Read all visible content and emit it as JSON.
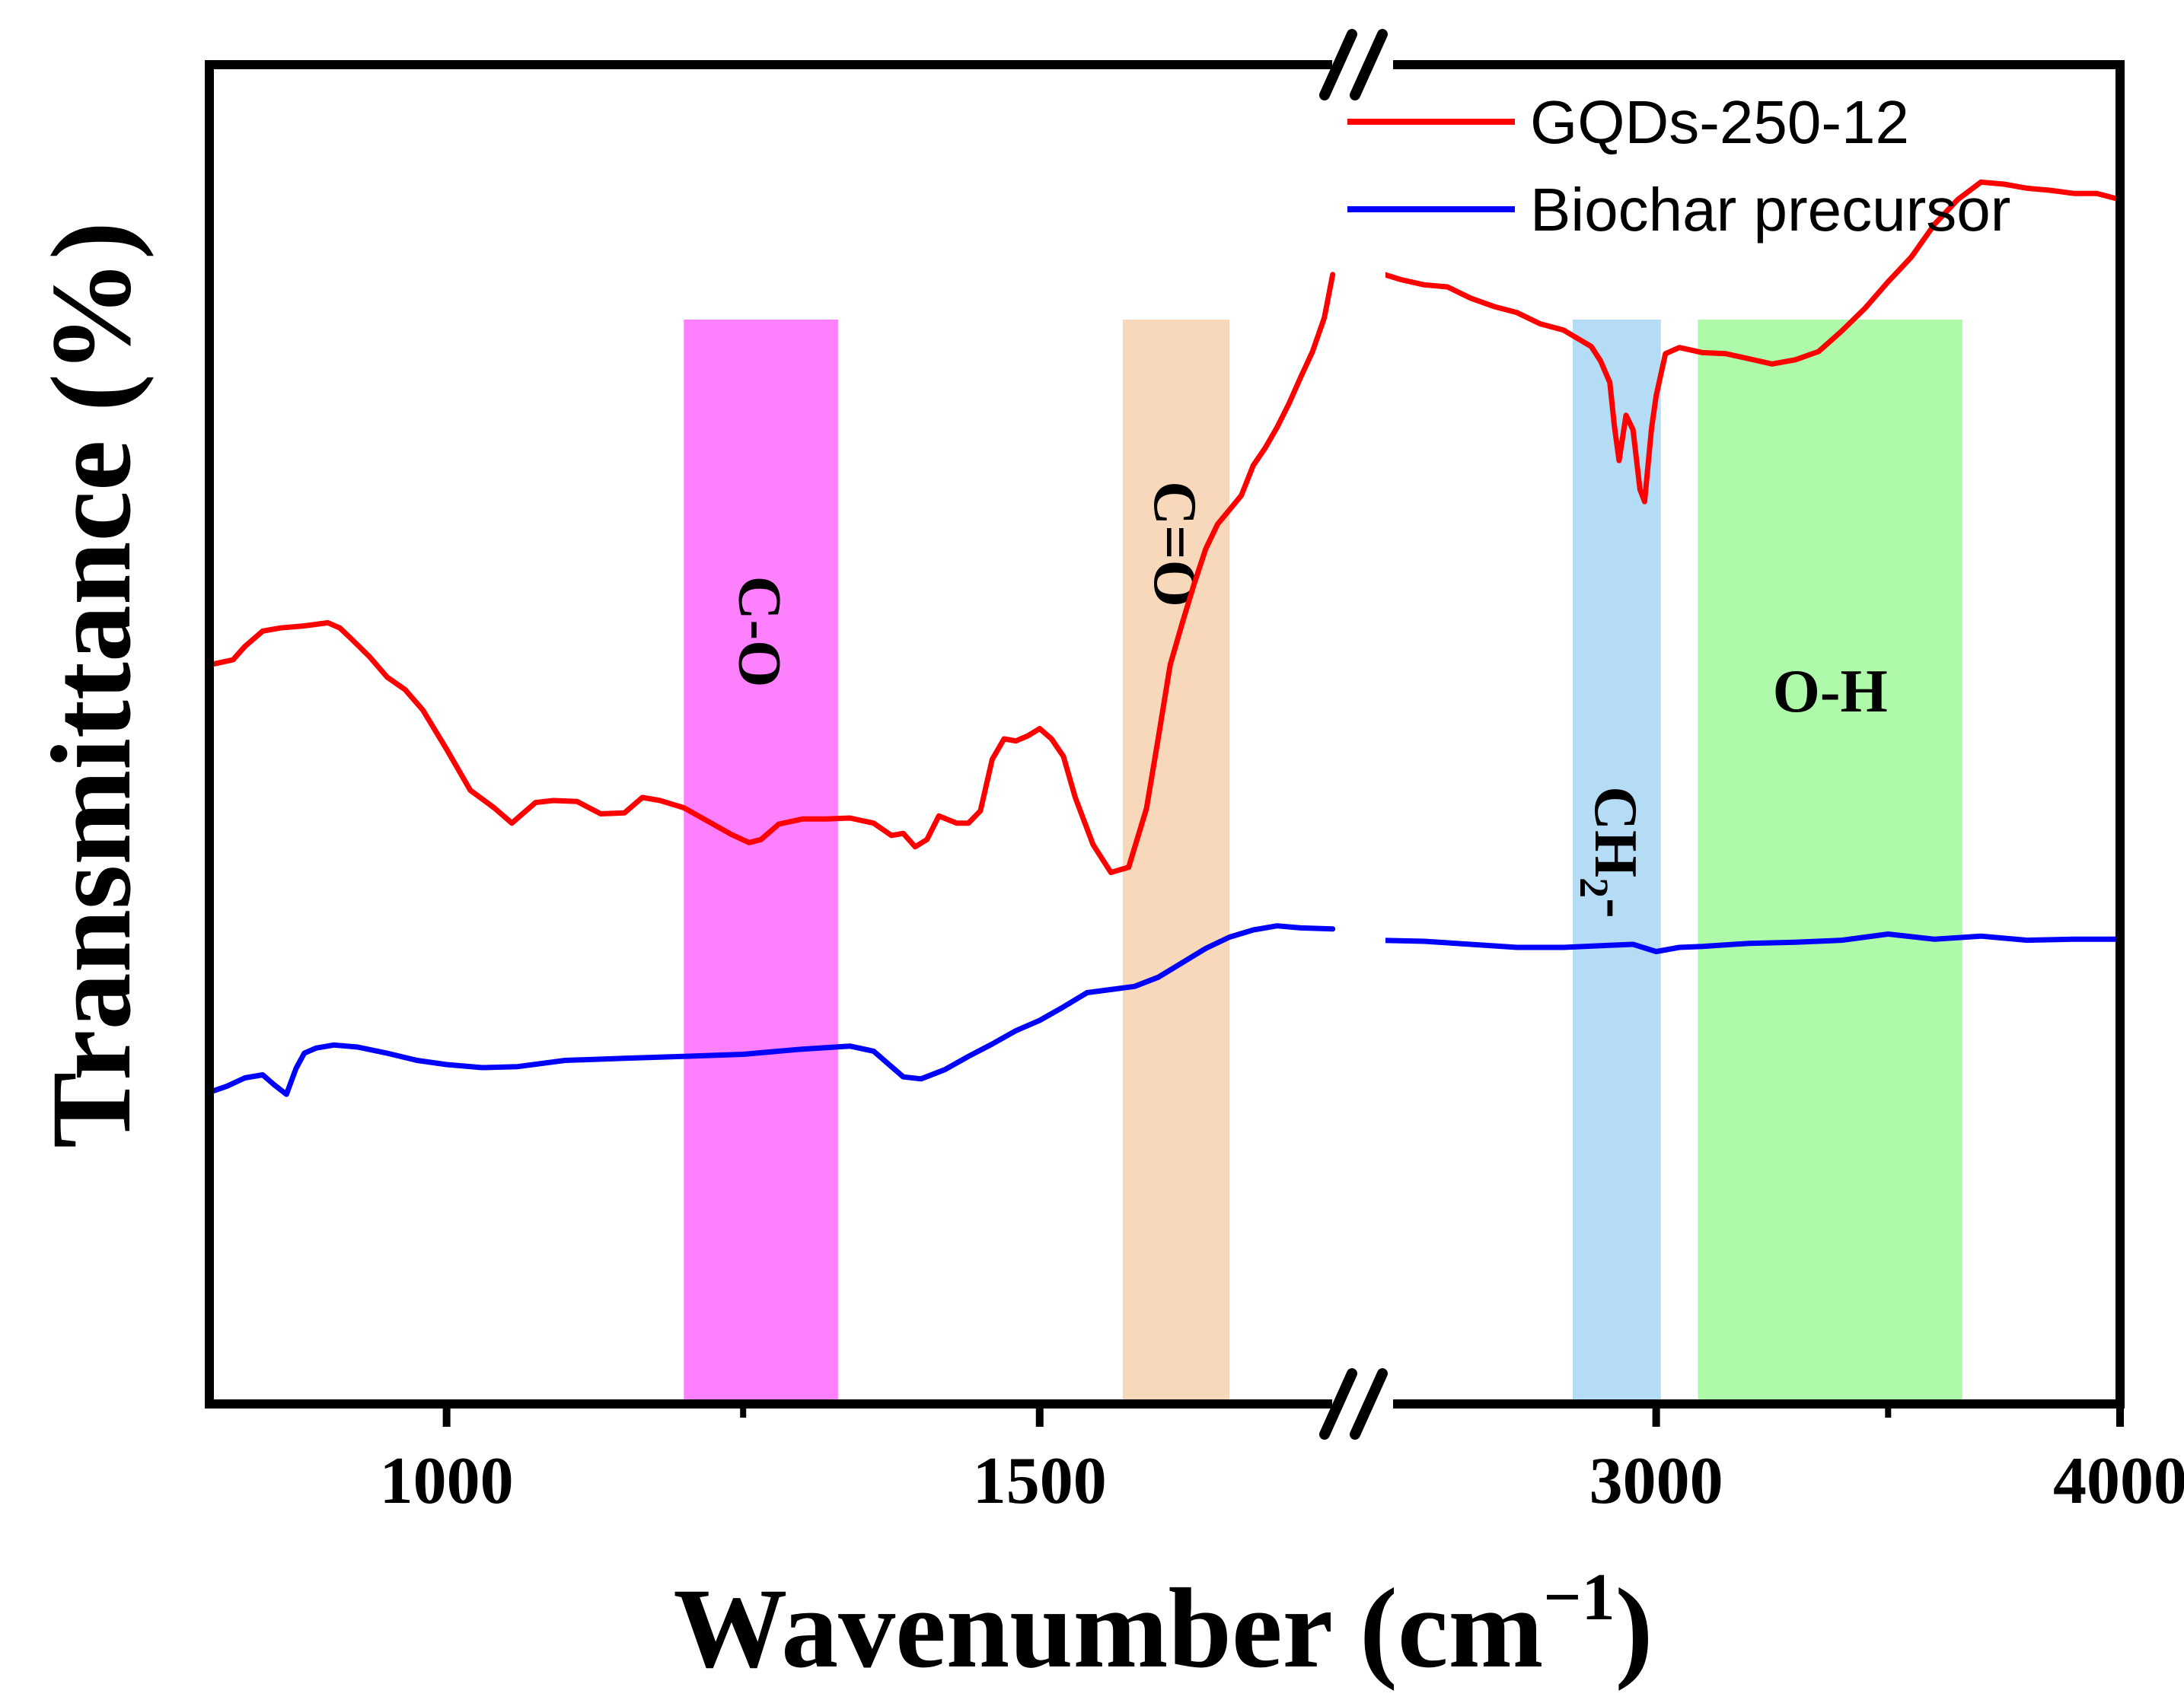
{
  "chart_data": {
    "type": "line",
    "title": "",
    "xlabel": "Wavenumber (cm",
    "xlabel_sup": "−1",
    "xlabel_close": ")",
    "ylabel": "Transmittance (%)",
    "x_axis": {
      "broken": true,
      "segments": [
        {
          "xlim": [
            800,
            1750
          ],
          "ticks": [
            1000,
            1500
          ],
          "tick_labels": [
            "1000",
            "1500"
          ]
        },
        {
          "xlim": [
            2400,
            4000
          ],
          "ticks": [
            3000,
            4000
          ],
          "tick_labels": [
            "3000",
            "4000"
          ]
        }
      ]
    },
    "ylim": [
      0,
      100
    ],
    "y_ticks": "none",
    "legend_position": "top-right",
    "series": [
      {
        "name": "GQDs-250-12",
        "color": "#ff0000",
        "segments": [
          {
            "x": [
              800,
              820,
              830,
              845,
              860,
              880,
              900,
              910,
              920,
              935,
              950,
              965,
              980,
              1000,
              1020,
              1040,
              1055,
              1065,
              1075,
              1090,
              1110,
              1130,
              1150,
              1165,
              1180,
              1200,
              1220,
              1240,
              1255,
              1265,
              1280,
              1300,
              1320,
              1340,
              1360,
              1375,
              1385,
              1395,
              1405,
              1415,
              1430,
              1440,
              1450,
              1460,
              1470,
              1480,
              1490,
              1500,
              1510,
              1520,
              1530,
              1545,
              1560,
              1575,
              1590,
              1600,
              1610,
              1620,
              1630,
              1640,
              1650,
              1660,
              1670,
              1680,
              1690,
              1700,
              1710,
              1720,
              1730,
              1740,
              1747
            ],
            "y": [
              61.2,
              61.7,
              63.0,
              64.5,
              64.8,
              65.0,
              65.3,
              64.8,
              63.7,
              62.0,
              60.0,
              58.8,
              56.8,
              53.0,
              49.0,
              47.3,
              45.8,
              46.8,
              47.8,
              48.0,
              47.9,
              46.7,
              46.8,
              48.3,
              48.0,
              47.3,
              46.0,
              44.7,
              43.9,
              44.2,
              45.7,
              46.2,
              46.2,
              46.3,
              45.8,
              44.6,
              44.8,
              43.5,
              44.2,
              46.5,
              45.8,
              45.8,
              47.0,
              52.0,
              54.0,
              53.8,
              54.3,
              55.0,
              54.0,
              52.3,
              48.3,
              43.7,
              41.0,
              41.5,
              47.2,
              54.1,
              61.2,
              65.2,
              69.0,
              72.5,
              74.9,
              76.3,
              77.7,
              80.6,
              82.3,
              84.3,
              86.6,
              89.2,
              91.7,
              95.0,
              99.2
            ]
          },
          {
            "x": [
              2400,
              2450,
              2500,
              2550,
              2600,
              2650,
              2700,
              2750,
              2800,
              2830,
              2860,
              2880,
              2900,
              2910,
              2920,
              2935,
              2950,
              2965,
              2975,
              2990,
              3000,
              3020,
              3050,
              3100,
              3150,
              3200,
              3250,
              3300,
              3350,
              3400,
              3450,
              3500,
              3550,
              3600,
              3650,
              3700,
              3750,
              3800,
              3850,
              3900,
              3950,
              4000
            ],
            "y": [
              99.4,
              98.7,
              98.2,
              98.0,
              96.9,
              96.1,
              95.5,
              94.4,
              93.8,
              93.0,
              92.2,
              90.8,
              88.7,
              84.4,
              81.1,
              85.5,
              84.1,
              78.3,
              77.1,
              84.2,
              87.4,
              91.5,
              92.1,
              91.6,
              91.5,
              91.0,
              90.5,
              90.9,
              91.7,
              93.7,
              95.9,
              98.5,
              100.9,
              104.1,
              106.5,
              108.2,
              108.0,
              107.6,
              107.4,
              107.1,
              107.1,
              106.5
            ]
          }
        ]
      },
      {
        "name": "Biochar precursor",
        "color": "#0000ff",
        "segments": [
          {
            "x": [
              800,
              815,
              830,
              845,
              855,
              865,
              873,
              880,
              890,
              905,
              925,
              950,
              975,
              1000,
              1030,
              1060,
              1100,
              1150,
              1200,
              1250,
              1300,
              1340,
              1360,
              1375,
              1385,
              1400,
              1420,
              1440,
              1460,
              1480,
              1500,
              1520,
              1540,
              1560,
              1580,
              1600,
              1620,
              1640,
              1660,
              1680,
              1700,
              1720,
              1747
            ],
            "y": [
              19.6,
              20.2,
              21.0,
              21.3,
              20.3,
              19.4,
              21.9,
              23.4,
              23.9,
              24.2,
              24.0,
              23.4,
              22.7,
              22.3,
              22.0,
              22.1,
              22.7,
              22.9,
              23.1,
              23.3,
              23.8,
              24.1,
              23.6,
              22.1,
              21.1,
              20.9,
              21.8,
              23.1,
              24.3,
              25.6,
              26.6,
              27.9,
              29.3,
              29.6,
              29.9,
              30.8,
              32.2,
              33.6,
              34.7,
              35.4,
              35.8,
              35.6,
              35.5
            ]
          },
          {
            "x": [
              2400,
              2500,
              2600,
              2700,
              2800,
              2900,
              2950,
              3000,
              3050,
              3100,
              3200,
              3300,
              3400,
              3500,
              3600,
              3700,
              3800,
              3900,
              4000
            ],
            "y": [
              34.4,
              34.3,
              34.0,
              33.7,
              33.7,
              33.9,
              34.0,
              33.3,
              33.7,
              33.8,
              34.1,
              34.2,
              34.4,
              35.0,
              34.5,
              34.8,
              34.4,
              34.5,
              34.5
            ]
          }
        ]
      }
    ],
    "bands": [
      {
        "label": "C-O",
        "x_range": [
          1200,
          1330
        ],
        "color": "#ff80ff",
        "label_orientation": "rotated"
      },
      {
        "label": "C=O",
        "x_range": [
          1570,
          1660
        ],
        "color": "#f8d8bb",
        "label_orientation": "rotated"
      },
      {
        "label": "CH",
        "label_sub": "2",
        "label_suffix": "-",
        "x_range": [
          2820,
          3010
        ],
        "color": "#b4ddf5",
        "label_orientation": "rotated"
      },
      {
        "label": "O-H",
        "x_range": [
          3090,
          3660
        ],
        "color": "#aff9aa",
        "label_orientation": "horizontal"
      }
    ]
  }
}
